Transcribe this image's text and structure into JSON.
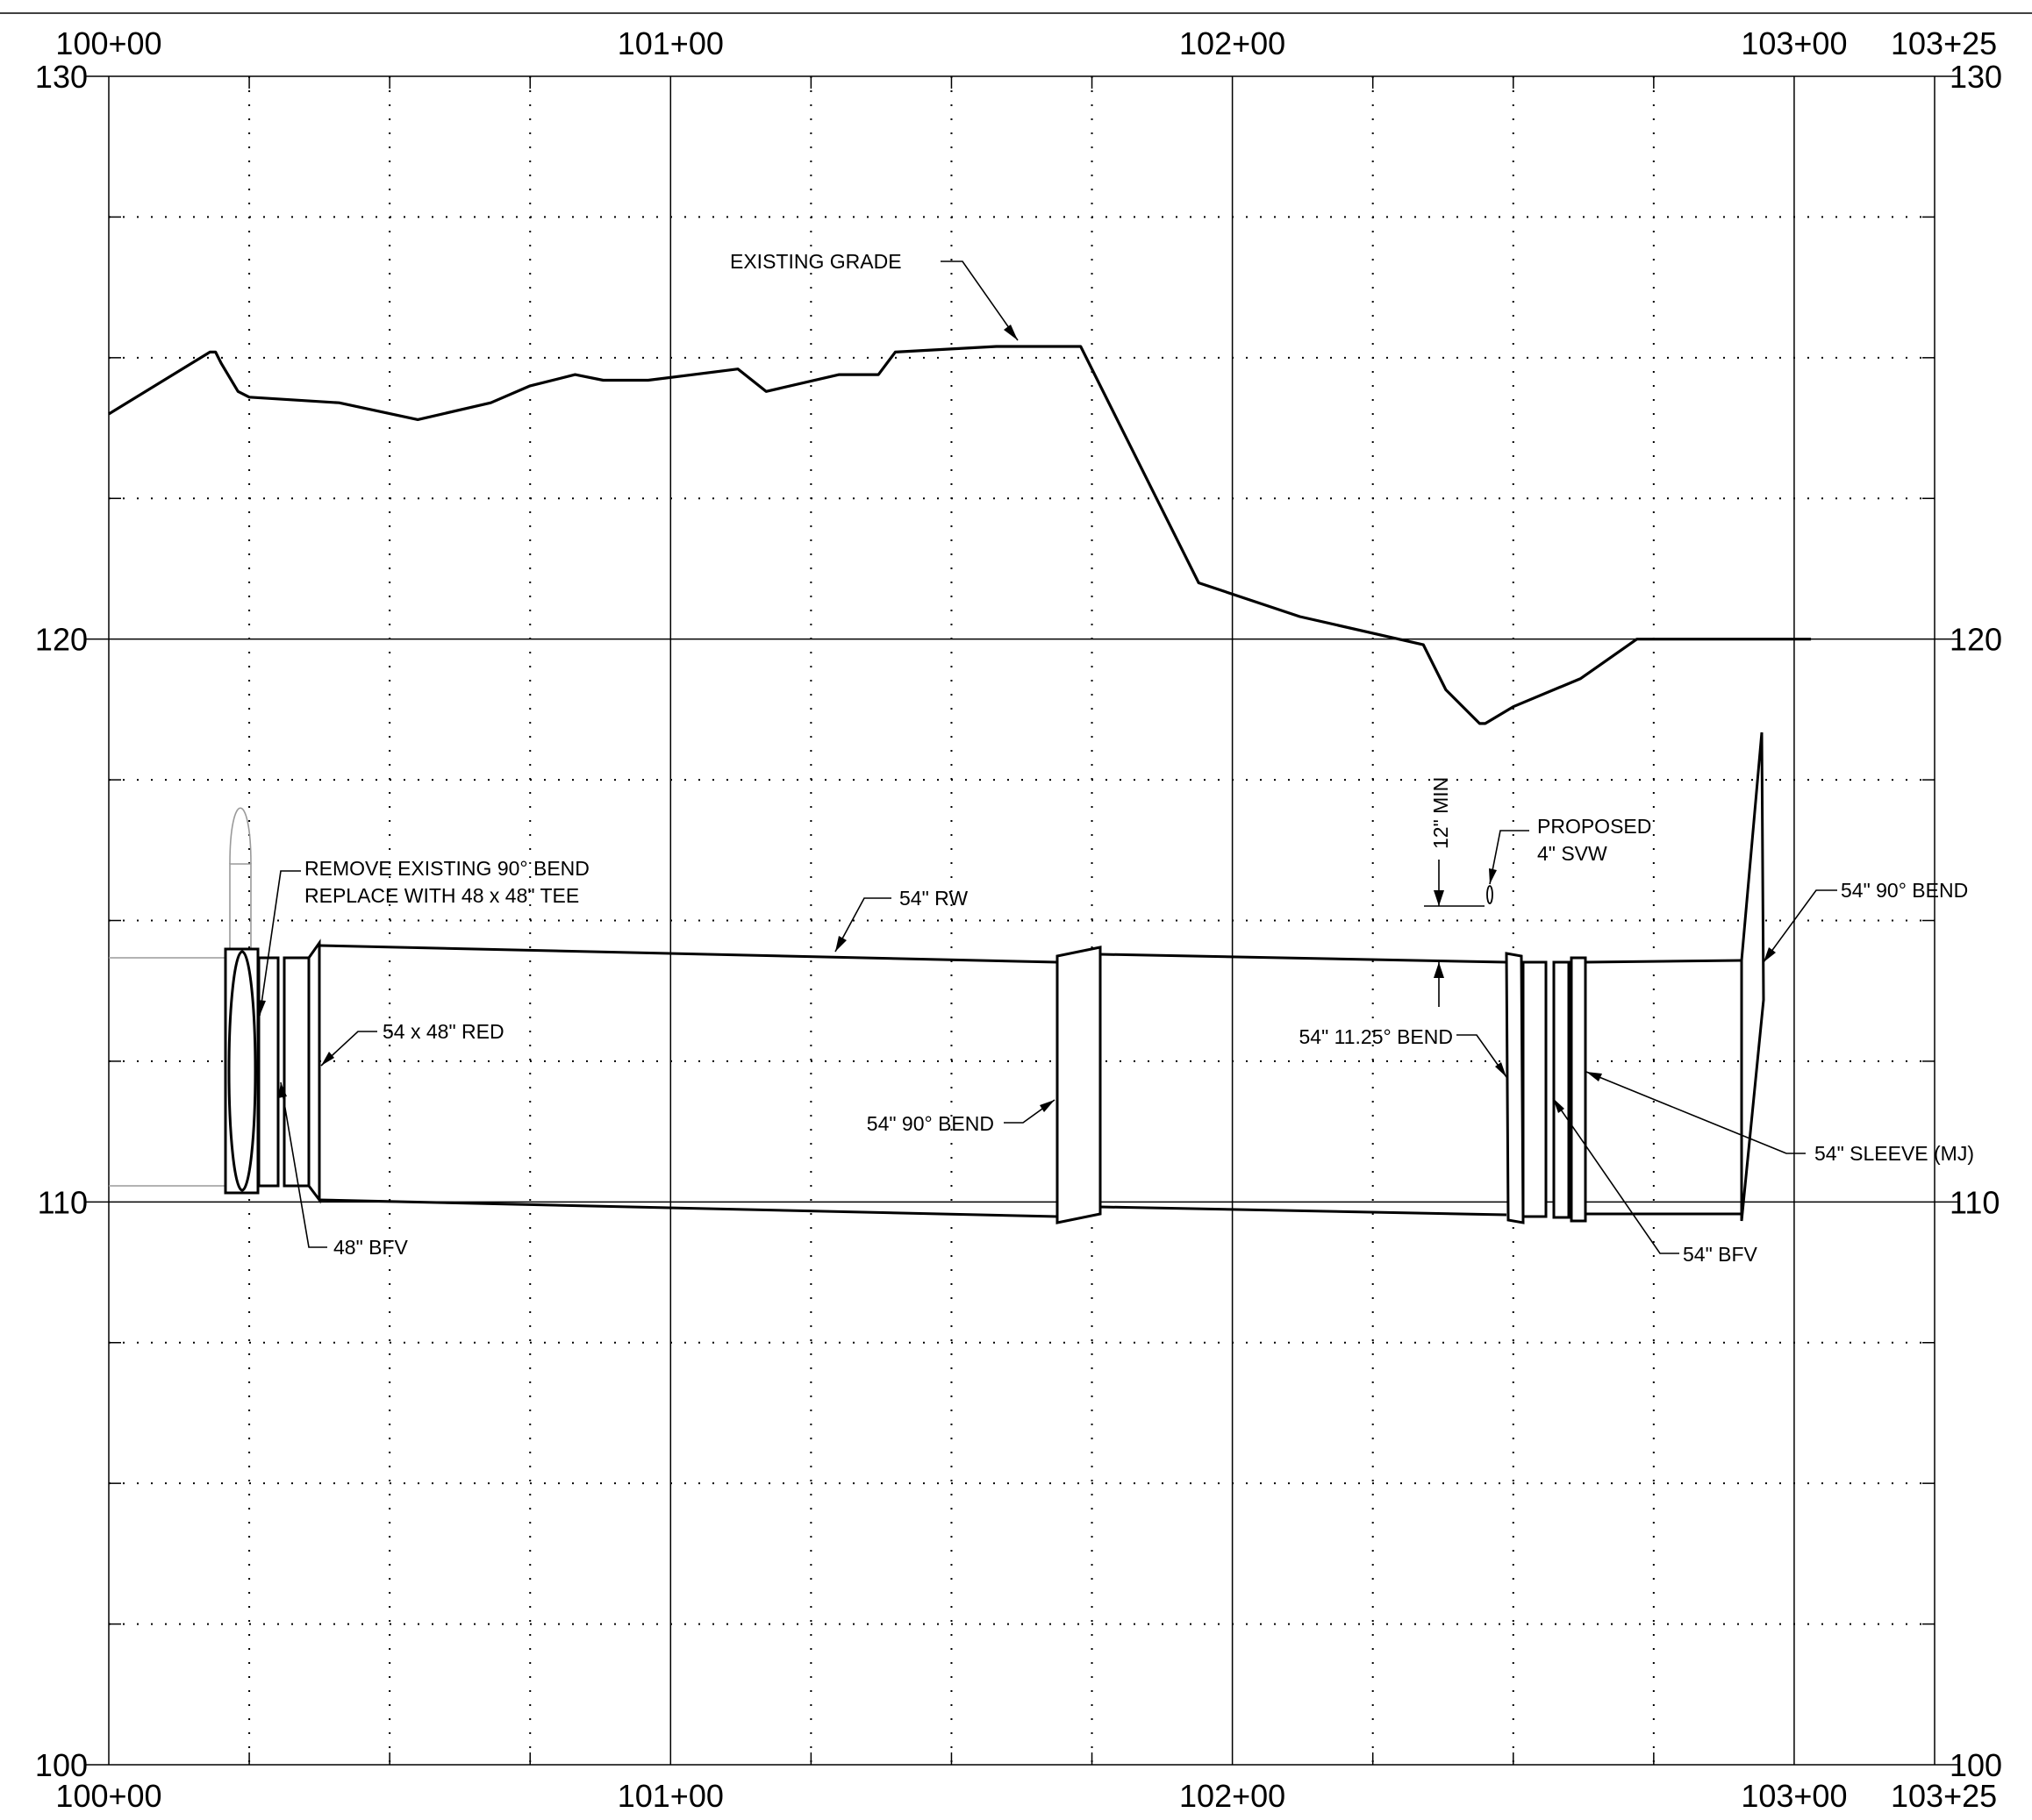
{
  "profile": {
    "station_axis": {
      "start": 10000,
      "end": 10325,
      "major_step": 100,
      "minor_step": 25,
      "labels": [
        {
          "station": 10000,
          "text": "100+00"
        },
        {
          "station": 10100,
          "text": "101+00"
        },
        {
          "station": 10200,
          "text": "102+00"
        },
        {
          "station": 10300,
          "text": "103+00"
        },
        {
          "station": 10325,
          "text": "103+25"
        }
      ]
    },
    "elevation_axis": {
      "min": 100,
      "max": 130,
      "major_step": 10,
      "minor_step": 2.5,
      "labels": [
        {
          "elev": 130,
          "text": "130"
        },
        {
          "elev": 120,
          "text": "120"
        },
        {
          "elev": 110,
          "text": "110"
        },
        {
          "elev": 100,
          "text": "100"
        }
      ]
    },
    "existing_grade": [
      [
        10000,
        124.0
      ],
      [
        10018,
        125.1
      ],
      [
        10019,
        125.1
      ],
      [
        10020,
        124.9
      ],
      [
        10023,
        124.4
      ],
      [
        10025,
        124.3
      ],
      [
        10041,
        124.2
      ],
      [
        10055,
        123.9
      ],
      [
        10068,
        124.2
      ],
      [
        10075,
        124.5
      ],
      [
        10083,
        124.7
      ],
      [
        10088,
        124.6
      ],
      [
        10096,
        124.6
      ],
      [
        10112,
        124.8
      ],
      [
        10117,
        124.4
      ],
      [
        10130,
        124.7
      ],
      [
        10137,
        124.7
      ],
      [
        10140,
        125.1
      ],
      [
        10158,
        125.2
      ],
      [
        10173,
        125.2
      ],
      [
        10194,
        121.0
      ],
      [
        10212,
        120.4
      ],
      [
        10234,
        119.9
      ],
      [
        10238,
        119.1
      ],
      [
        10244,
        118.5
      ],
      [
        10245,
        118.5
      ],
      [
        10250,
        118.8
      ],
      [
        10262,
        119.3
      ],
      [
        10272,
        120.0
      ],
      [
        10303,
        120.0
      ]
    ],
    "labels": {
      "existing_grade": "EXISTING GRADE",
      "rw_54": "54\" RW",
      "remove_line1": "REMOVE EXISTING 90° BEND",
      "remove_line2": "REPLACE WITH 48 x 48\" TEE",
      "reducer": "54 x 48\" RED",
      "bfv_48": "48\" BFV",
      "bend_90_mid": "54\" 90° BEND",
      "bend_1125": "54\" 11.25° BEND",
      "sleeve": "54\" SLEEVE (MJ)",
      "bfv_54": "54\" BFV",
      "bend_90_end": "54\" 90° BEND",
      "min_cover": "12\" MIN",
      "svw_line1": "PROPOSED",
      "svw_line2": "4\" SVW"
    }
  }
}
